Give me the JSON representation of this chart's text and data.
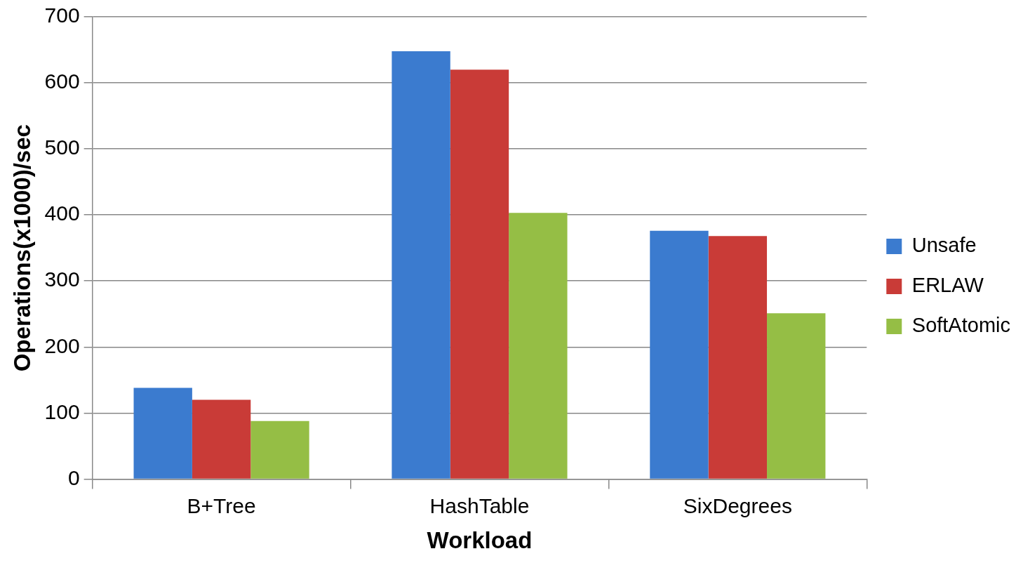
{
  "chart_data": {
    "type": "bar",
    "xlabel": "Workload",
    "ylabel": "Operations(x1000)/sec",
    "categories": [
      "B+Tree",
      "HashTable",
      "SixDegrees"
    ],
    "series": [
      {
        "name": "Unsafe",
        "color": "#3b7bcf",
        "values": [
          138,
          648,
          376
        ]
      },
      {
        "name": "ERLAW",
        "color": "#c93b37",
        "values": [
          120,
          620,
          368
        ]
      },
      {
        "name": "SoftAtomic",
        "color": "#95be45",
        "values": [
          88,
          403,
          251
        ]
      }
    ],
    "ylim": [
      0,
      700
    ],
    "yticks": [
      0,
      100,
      200,
      300,
      400,
      500,
      600,
      700
    ],
    "grid": "y",
    "legend": "right"
  }
}
